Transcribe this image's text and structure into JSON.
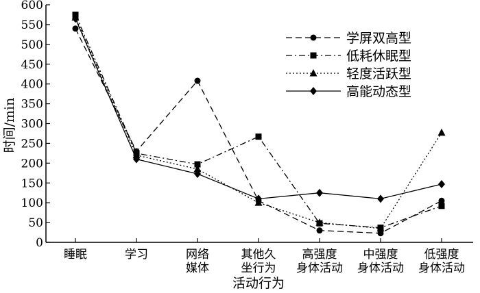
{
  "chart_data": {
    "type": "line",
    "xlabel": "活动行为",
    "ylabel": "时间/min",
    "ylim": [
      0,
      600
    ],
    "yticks": [
      0,
      50,
      100,
      150,
      200,
      250,
      300,
      350,
      400,
      450,
      500,
      550,
      600
    ],
    "grid": false,
    "legend_position": "top-right",
    "categories": [
      [
        "睡眠"
      ],
      [
        "学习"
      ],
      [
        "网络",
        "媒体"
      ],
      [
        "其他久",
        "坐行为"
      ],
      [
        "高强度",
        "身体活动"
      ],
      [
        "中强度",
        "身体活动"
      ],
      [
        "低强度",
        "身体活动"
      ]
    ],
    "series": [
      {
        "name": "学屏双高型",
        "marker": "circle",
        "dash": "dashed",
        "values": [
          540,
          230,
          408,
          105,
          30,
          23,
          105
        ]
      },
      {
        "name": "低耗休眠型",
        "marker": "square",
        "dash": "dashdot",
        "values": [
          575,
          225,
          197,
          267,
          48,
          37,
          92
        ]
      },
      {
        "name": "轻度活跃型",
        "marker": "triangle",
        "dash": "dotted",
        "values": [
          568,
          220,
          185,
          100,
          50,
          35,
          277
        ]
      },
      {
        "name": "高能动态型",
        "marker": "diamond",
        "dash": "solid",
        "values": [
          565,
          210,
          173,
          110,
          125,
          110,
          147
        ]
      }
    ]
  }
}
